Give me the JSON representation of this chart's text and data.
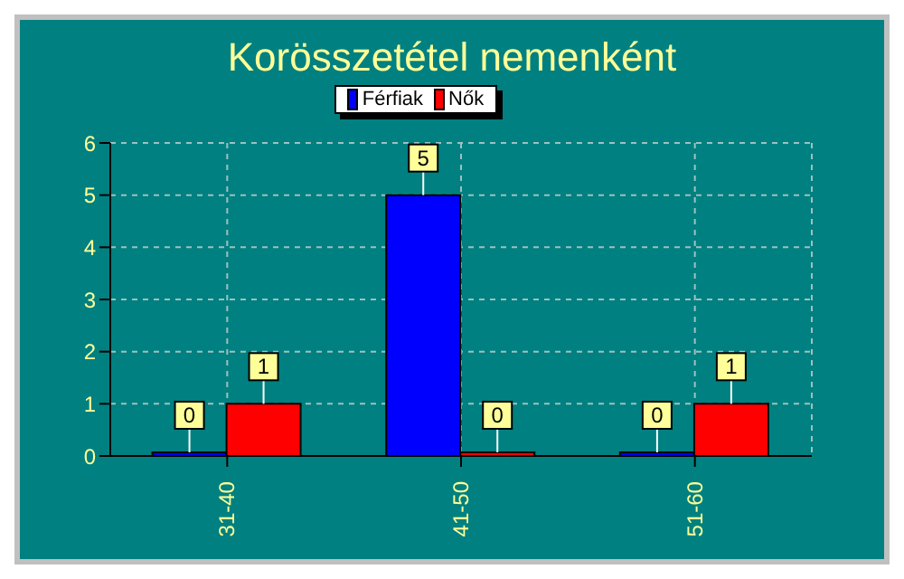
{
  "chart_data": {
    "type": "bar",
    "title": "Korösszetétel nemenként",
    "categories": [
      "31-40",
      "41-50",
      "51-60"
    ],
    "series": [
      {
        "name": "Férfiak",
        "color": "#0000ff",
        "values": [
          0,
          5,
          0
        ]
      },
      {
        "name": "Nők",
        "color": "#ff0000",
        "values": [
          1,
          0,
          1
        ]
      }
    ],
    "ylim": [
      0,
      6
    ],
    "yticks": [
      0,
      1,
      2,
      3,
      4,
      5,
      6
    ],
    "grid": true,
    "legend": "top",
    "data_labels": true
  }
}
